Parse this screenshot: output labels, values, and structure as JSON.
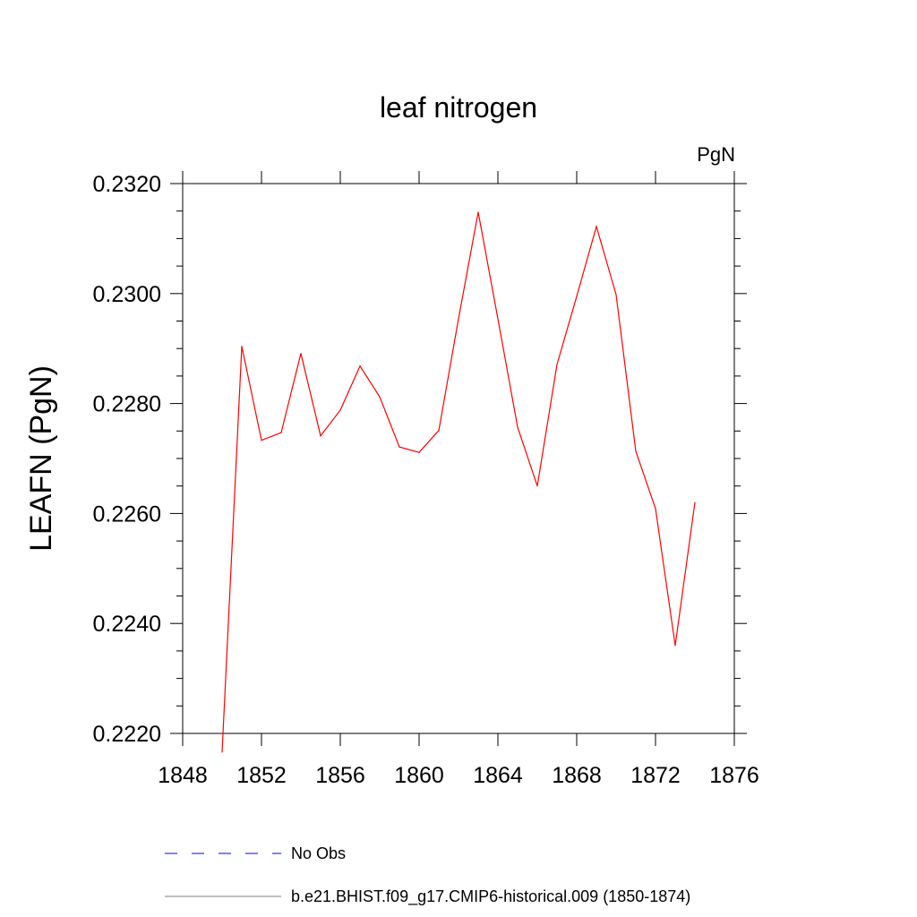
{
  "chart_data": {
    "type": "line",
    "title": "leaf nitrogen",
    "units_label": "PgN",
    "ylabel": "LEAFN  (PgN)",
    "xlabel": "",
    "xlim": [
      1848,
      1876
    ],
    "ylim": [
      0.222,
      0.232
    ],
    "xticks": [
      "1848",
      "1852",
      "1856",
      "1860",
      "1864",
      "1868",
      "1872",
      "1876"
    ],
    "yticks": [
      "0.2220",
      "0.2240",
      "0.2260",
      "0.2280",
      "0.2300",
      "0.2320"
    ],
    "grid": false,
    "x": [
      1850,
      1851,
      1852,
      1853,
      1854,
      1855,
      1856,
      1857,
      1858,
      1859,
      1860,
      1861,
      1862,
      1863,
      1864,
      1865,
      1866,
      1867,
      1868,
      1869,
      1870,
      1871,
      1872,
      1873,
      1874
    ],
    "series": [
      {
        "name": "b.e21.BHIST.f09_g17.CMIP6-historical.009 (1850-1874)",
        "color": "#ff0000",
        "values": [
          0.22166,
          0.22904,
          0.22733,
          0.22747,
          0.22891,
          0.22741,
          0.22788,
          0.22868,
          0.22812,
          0.22721,
          0.22711,
          0.22751,
          0.22954,
          0.23148,
          0.22954,
          0.22757,
          0.2265,
          0.22871,
          0.22995,
          0.23122,
          0.22998,
          0.22713,
          0.22609,
          0.2236,
          0.2262
        ]
      }
    ],
    "legend": {
      "placement": "bottom",
      "entries": [
        {
          "label": "No Obs",
          "color": "#0000ff",
          "style": "dashed"
        },
        {
          "label": "b.e21.BHIST.f09_g17.CMIP6-historical.009 (1850-1874)",
          "color": "#808080",
          "style": "solid"
        }
      ]
    }
  }
}
